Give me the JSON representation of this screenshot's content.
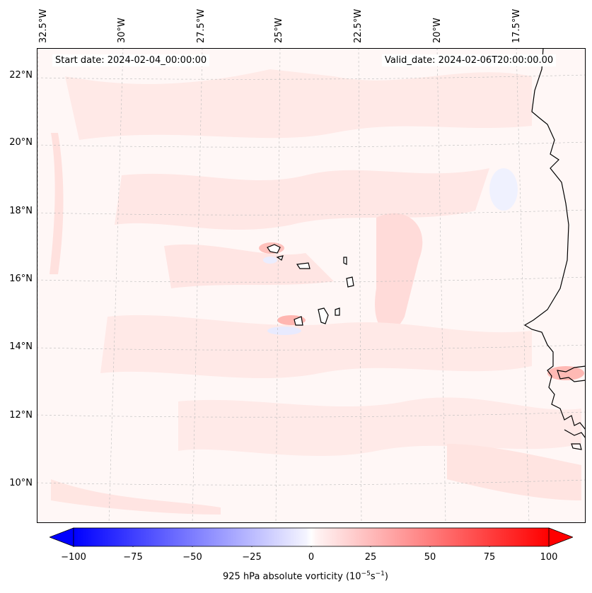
{
  "map": {
    "start_date": "Start date: 2024-02-04_00:00:00",
    "valid_date": "Valid_date: 2024-02-06T20:00:00.00",
    "lon_labels": [
      "32.5°W",
      "30°W",
      "27.5°W",
      "25°W",
      "22.5°W",
      "20°W",
      "17.5°W"
    ],
    "lat_labels": [
      "22°N",
      "20°N",
      "18°N",
      "16°N",
      "14°N",
      "12°N",
      "10°N"
    ],
    "extent": {
      "lon_min": -33.0,
      "lon_max": -16.3,
      "lat_min": 8.9,
      "lat_max": 22.8
    }
  },
  "colorbar": {
    "ticks": [
      "−100",
      "−75",
      "−50",
      "−25",
      "0",
      "25",
      "50",
      "75",
      "100"
    ],
    "label_prefix": "925 hPa absolute vorticity (10",
    "label_exp1": "−5",
    "label_mid": "s",
    "label_exp2": "−1",
    "label_suffix": ")",
    "range": [
      -100,
      100
    ],
    "colors": {
      "min": "#0000ff",
      "mid": "#ffffff",
      "max": "#ff0000"
    }
  }
}
